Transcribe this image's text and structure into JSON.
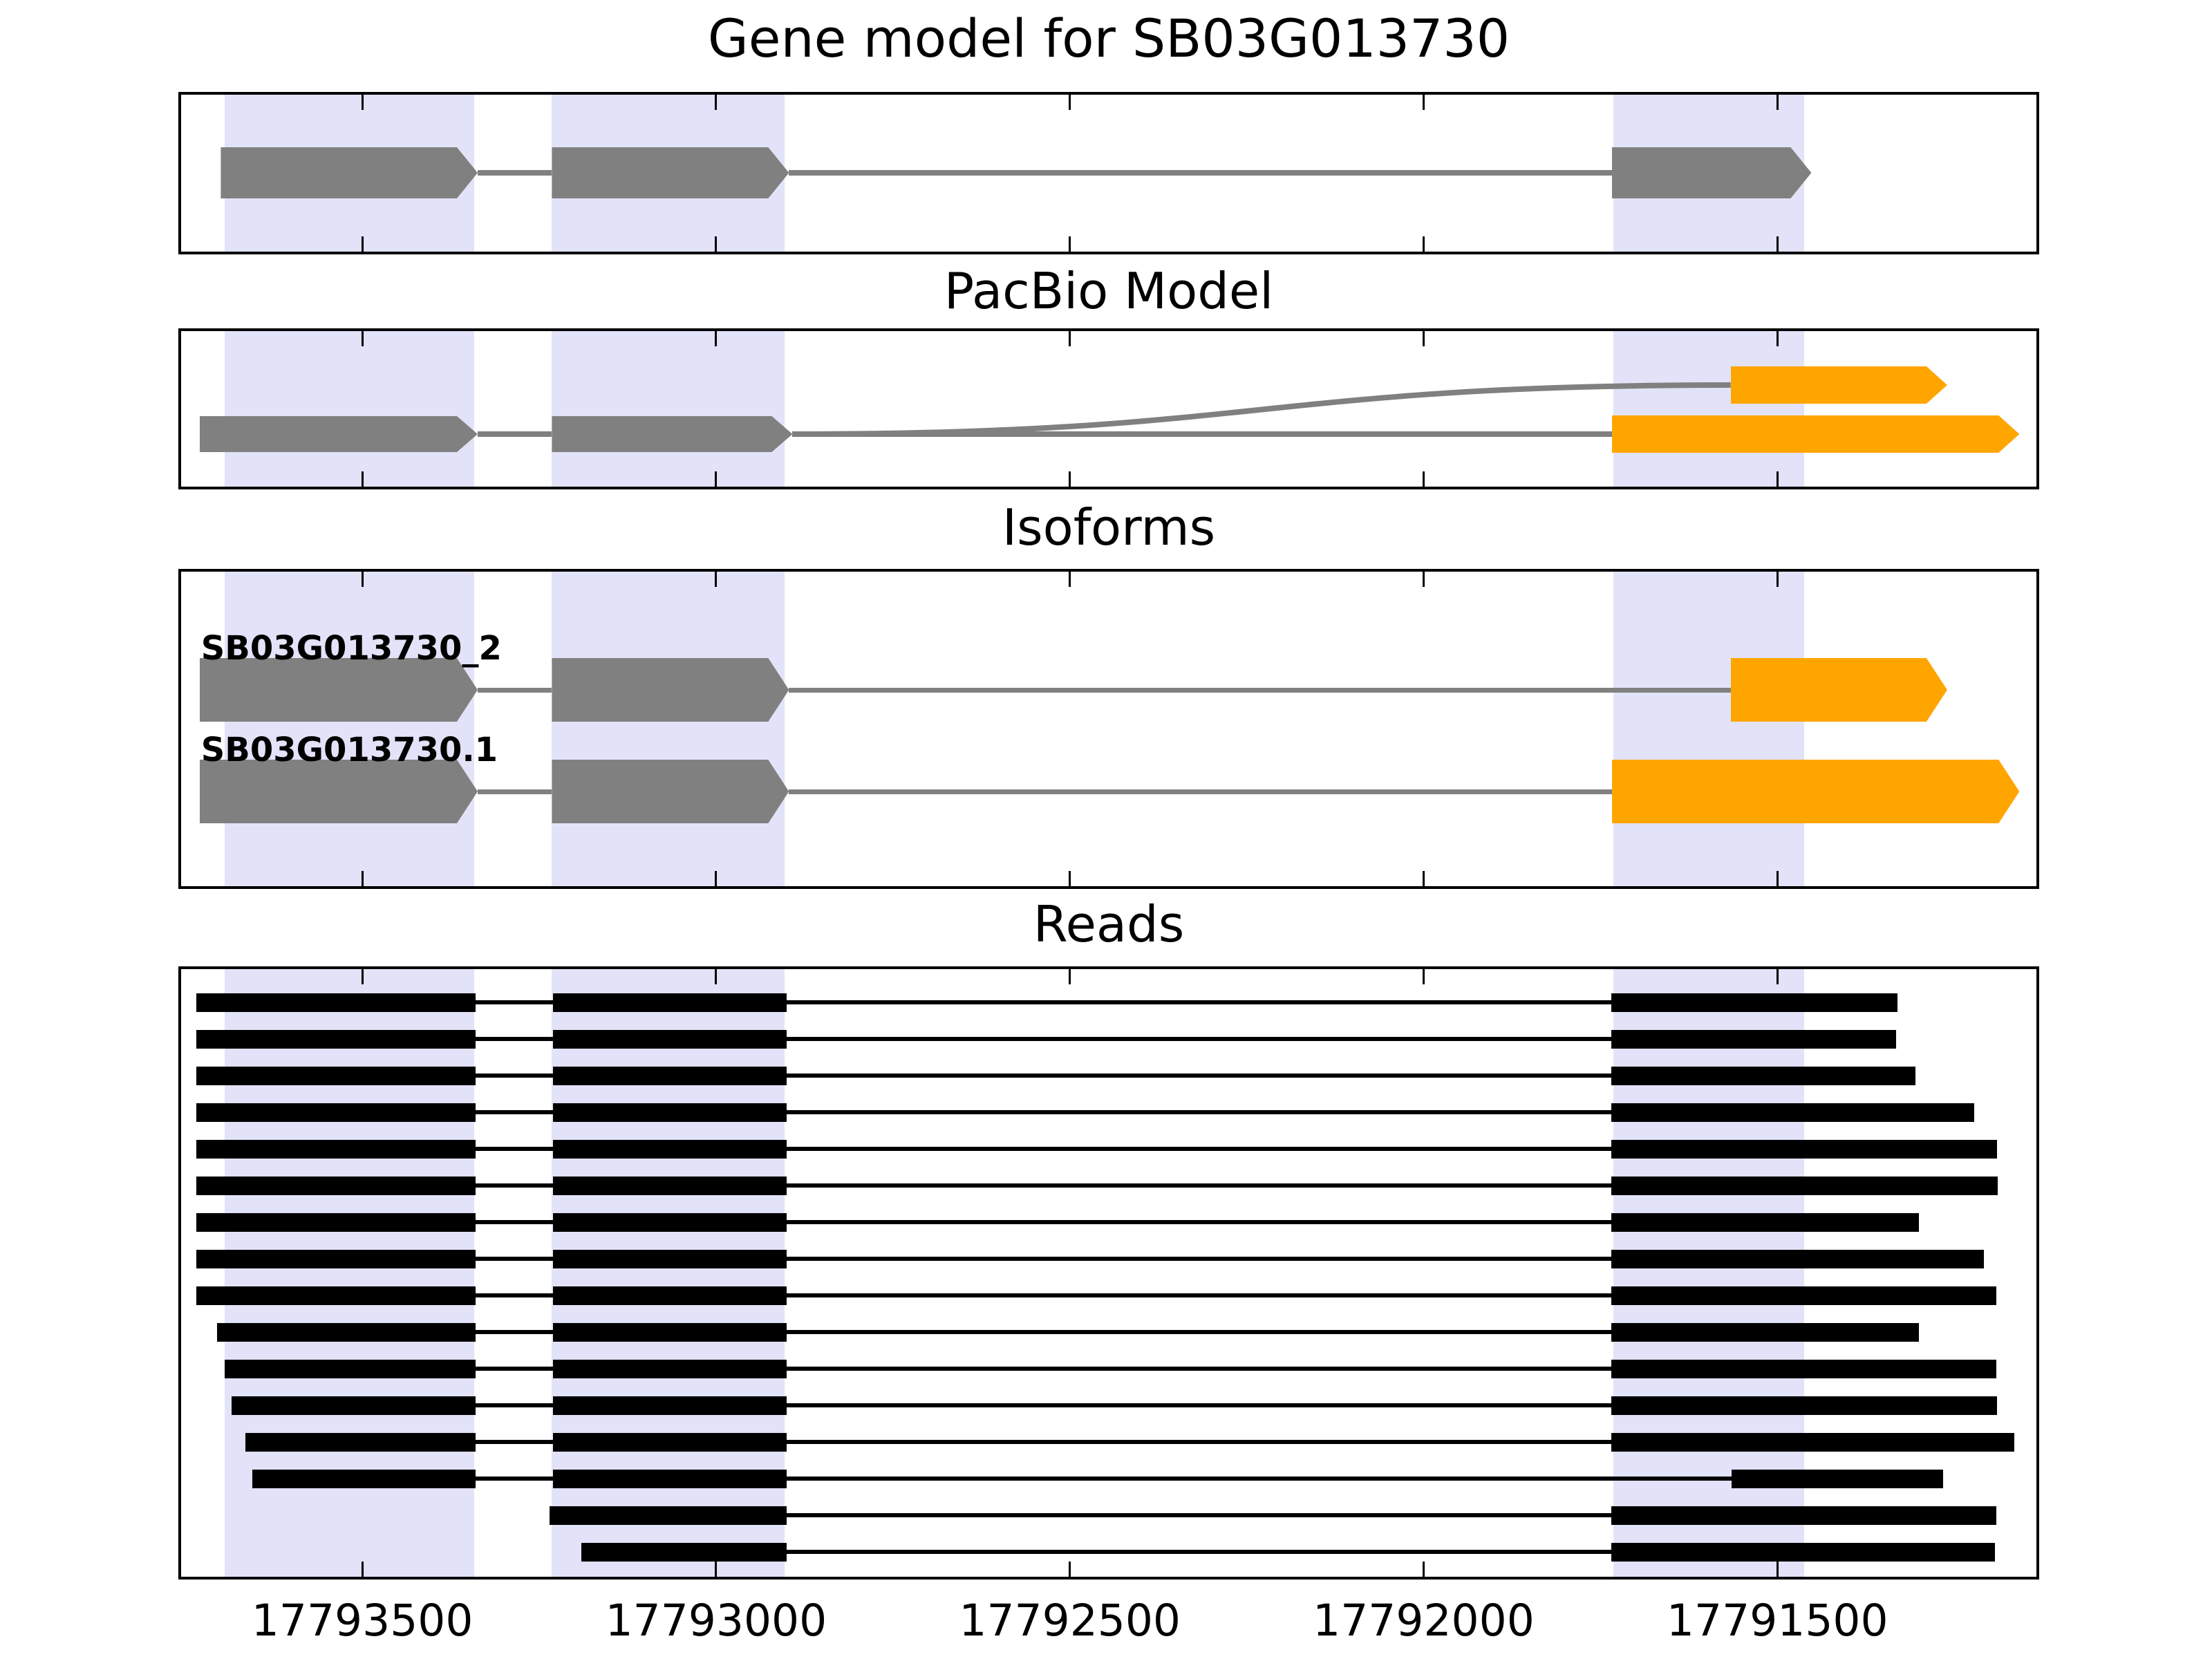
{
  "figure_title": "Gene model for SB03G013730",
  "colors": {
    "exon_gray": "#808080",
    "exon_orange": "#ffa500",
    "read_black": "#000000",
    "highlight_band": "#e2e2f8",
    "intron_gray": "#808080",
    "axis_black": "#000000",
    "background": "#ffffff"
  },
  "axis": {
    "orientation": "reversed",
    "left_bp": 17793760,
    "right_bp": 17791130,
    "ticks": [
      {
        "bp": 17793500,
        "label": "17793500"
      },
      {
        "bp": 17793000,
        "label": "17793000"
      },
      {
        "bp": 17792500,
        "label": "17792500"
      },
      {
        "bp": 17792000,
        "label": "17792000"
      },
      {
        "bp": 17791500,
        "label": "17791500"
      }
    ]
  },
  "highlights": [
    {
      "left_bp": 17793695,
      "right_bp": 17793342
    },
    {
      "left_bp": 17793232,
      "right_bp": 17792903
    },
    {
      "left_bp": 17791732,
      "right_bp": 17791462
    }
  ],
  "chart_data": [
    {
      "type": "gene-model",
      "title": "Gene model for SB03G013730",
      "strand": "+",
      "exons": [
        [
          17793700,
          17793337
        ],
        [
          17793232,
          17792897
        ],
        [
          17791734,
          17791452
        ]
      ]
    },
    {
      "type": "pacbio-model",
      "title": "PacBio Model",
      "gray_exons": [
        [
          17793730,
          17793337
        ],
        [
          17793232,
          17792892
        ]
      ],
      "orange_exons": [
        {
          "row": "top",
          "span": [
            17791566,
            17791260
          ]
        },
        {
          "row": "bottom",
          "span": [
            17791734,
            17791158
          ]
        }
      ]
    },
    {
      "type": "isoforms",
      "title": "Isoforms",
      "isoforms": [
        {
          "name": "SB03G013730_2",
          "gray_exons": [
            [
              17793730,
              17793337
            ],
            [
              17793232,
              17792897
            ]
          ],
          "orange_exon": [
            17791566,
            17791260
          ]
        },
        {
          "name": "SB03G013730.1",
          "gray_exons": [
            [
              17793730,
              17793337
            ],
            [
              17793232,
              17792897
            ]
          ],
          "orange_exon": [
            17791734,
            17791158
          ]
        }
      ]
    },
    {
      "type": "reads",
      "title": "Reads",
      "reads": [
        {
          "segments": [
            [
              17793735,
              17793340
            ],
            [
              17793230,
              17792900
            ],
            [
              17791735,
              17791330
            ]
          ]
        },
        {
          "segments": [
            [
              17793735,
              17793340
            ],
            [
              17793230,
              17792900
            ],
            [
              17791735,
              17791332
            ]
          ]
        },
        {
          "segments": [
            [
              17793735,
              17793340
            ],
            [
              17793230,
              17792900
            ],
            [
              17791735,
              17791305
            ]
          ]
        },
        {
          "segments": [
            [
              17793735,
              17793340
            ],
            [
              17793230,
              17792900
            ],
            [
              17791735,
              17791222
            ]
          ]
        },
        {
          "segments": [
            [
              17793735,
              17793340
            ],
            [
              17793230,
              17792900
            ],
            [
              17791735,
              17791190
            ]
          ]
        },
        {
          "segments": [
            [
              17793735,
              17793340
            ],
            [
              17793230,
              17792900
            ],
            [
              17791735,
              17791189
            ]
          ]
        },
        {
          "segments": [
            [
              17793735,
              17793340
            ],
            [
              17793230,
              17792900
            ],
            [
              17791735,
              17791300
            ]
          ]
        },
        {
          "segments": [
            [
              17793735,
              17793340
            ],
            [
              17793230,
              17792900
            ],
            [
              17791735,
              17791208
            ]
          ]
        },
        {
          "segments": [
            [
              17793735,
              17793340
            ],
            [
              17793230,
              17792900
            ],
            [
              17791735,
              17791191
            ]
          ]
        },
        {
          "segments": [
            [
              17793705,
              17793340
            ],
            [
              17793230,
              17792900
            ],
            [
              17791735,
              17791300
            ]
          ]
        },
        {
          "segments": [
            [
              17793695,
              17793340
            ],
            [
              17793230,
              17792900
            ],
            [
              17791735,
              17791191
            ]
          ]
        },
        {
          "segments": [
            [
              17793685,
              17793340
            ],
            [
              17793230,
              17792900
            ],
            [
              17791735,
              17791190
            ]
          ]
        },
        {
          "segments": [
            [
              17793665,
              17793340
            ],
            [
              17793230,
              17792900
            ],
            [
              17791735,
              17791165
            ]
          ]
        },
        {
          "segments": [
            [
              17793655,
              17793340
            ],
            [
              17793230,
              17792900
            ],
            [
              17791565,
              17791266
            ]
          ]
        },
        {
          "segments": [
            [
              17793235,
              17792900
            ],
            [
              17791735,
              17791191
            ]
          ]
        },
        {
          "segments": [
            [
              17793190,
              17792900
            ],
            [
              17791735,
              17791193
            ]
          ]
        }
      ]
    }
  ]
}
